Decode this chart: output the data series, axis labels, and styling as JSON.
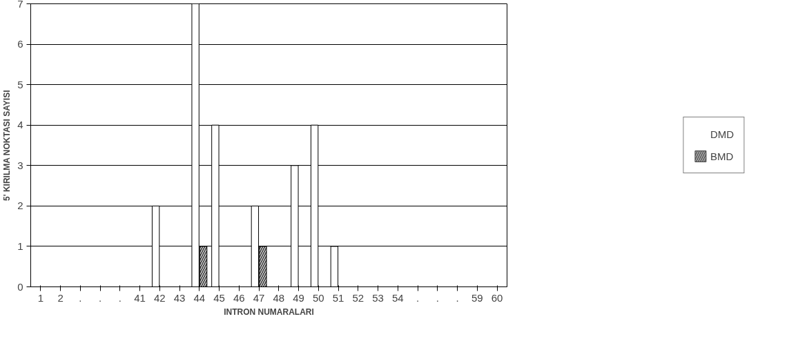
{
  "chart_data": {
    "type": "bar",
    "xlabel": "INTRON NUMARALARI",
    "ylabel": "5' KIRILMA NOKTASI SAYISI",
    "categories": [
      "1",
      "2",
      ".",
      ".",
      ".",
      "41",
      "42",
      "43",
      "44",
      "45",
      "46",
      "47",
      "48",
      "49",
      "50",
      "51",
      "52",
      "53",
      "54",
      ".",
      ".",
      ".",
      "59",
      "60"
    ],
    "series": [
      {
        "name": "DMD",
        "color": "#ffffff",
        "values": [
          0,
          0,
          0,
          0,
          0,
          0,
          2,
          0,
          7,
          4,
          0,
          2,
          0,
          3,
          4,
          1,
          0,
          0,
          0,
          0,
          0,
          0,
          0,
          0
        ]
      },
      {
        "name": "BMD",
        "color": "#444444",
        "values": [
          0,
          0,
          0,
          0,
          0,
          0,
          0,
          0,
          1,
          0,
          0,
          1,
          0,
          0,
          0,
          0,
          0,
          0,
          0,
          0,
          0,
          0,
          0,
          0
        ]
      }
    ],
    "ylim": [
      0,
      7
    ],
    "yticks": [
      0,
      1,
      2,
      3,
      4,
      5,
      6,
      7
    ],
    "grid": "y",
    "legend": "right"
  }
}
